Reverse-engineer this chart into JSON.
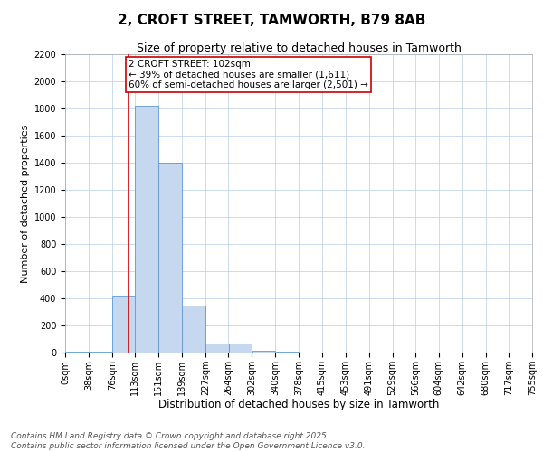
{
  "title": "2, CROFT STREET, TAMWORTH, B79 8AB",
  "subtitle": "Size of property relative to detached houses in Tamworth",
  "xlabel": "Distribution of detached houses by size in Tamworth",
  "ylabel": "Number of detached properties",
  "bins": [
    "0sqm",
    "38sqm",
    "76sqm",
    "113sqm",
    "151sqm",
    "189sqm",
    "227sqm",
    "264sqm",
    "302sqm",
    "340sqm",
    "378sqm",
    "415sqm",
    "453sqm",
    "491sqm",
    "529sqm",
    "566sqm",
    "604sqm",
    "642sqm",
    "680sqm",
    "717sqm",
    "755sqm"
  ],
  "bin_edges": [
    0,
    38,
    76,
    113,
    151,
    189,
    227,
    264,
    302,
    340,
    378,
    415,
    453,
    491,
    529,
    566,
    604,
    642,
    680,
    717,
    755
  ],
  "counts": [
    5,
    5,
    420,
    1820,
    1400,
    350,
    70,
    70,
    15,
    5,
    0,
    0,
    0,
    0,
    0,
    0,
    0,
    0,
    0,
    0
  ],
  "bar_color": "#c5d8f0",
  "bar_edge_color": "#5b9bd5",
  "property_size": 102,
  "vline_color": "#cc0000",
  "vline_x": 102,
  "annotation_text": "2 CROFT STREET: 102sqm\n← 39% of detached houses are smaller (1,611)\n60% of semi-detached houses are larger (2,501) →",
  "annotation_box_color": "#cc0000",
  "annotation_box_fill": "#ffffff",
  "ylim": [
    0,
    2200
  ],
  "yticks": [
    0,
    200,
    400,
    600,
    800,
    1000,
    1200,
    1400,
    1600,
    1800,
    2000,
    2200
  ],
  "grid_color": "#b8cfe8",
  "background_color": "#ffffff",
  "footer_text": "Contains HM Land Registry data © Crown copyright and database right 2025.\nContains public sector information licensed under the Open Government Licence v3.0.",
  "title_fontsize": 11,
  "subtitle_fontsize": 9,
  "xlabel_fontsize": 8.5,
  "ylabel_fontsize": 8,
  "tick_fontsize": 7,
  "annotation_fontsize": 7.5,
  "footer_fontsize": 6.5
}
